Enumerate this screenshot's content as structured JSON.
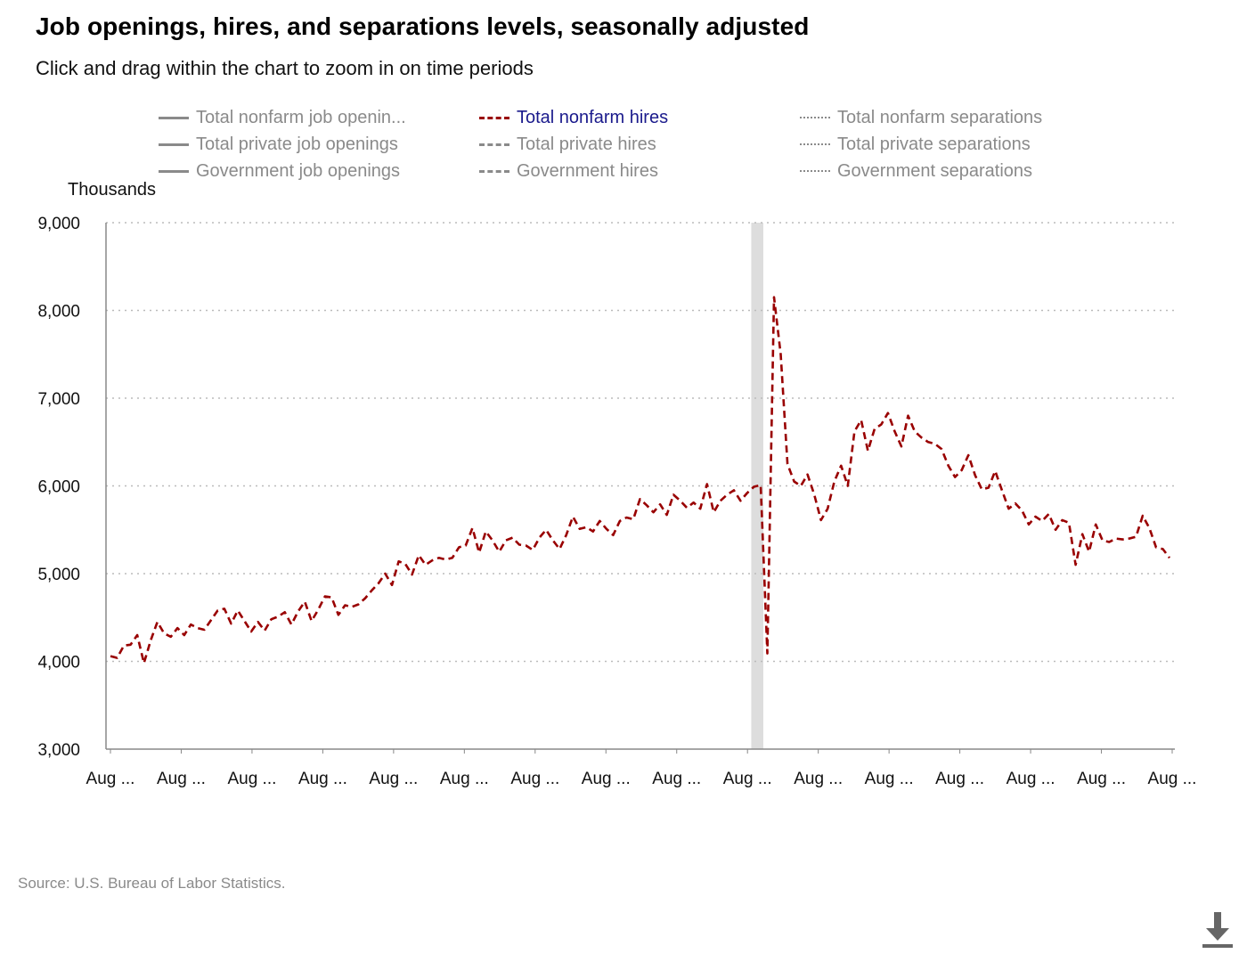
{
  "header": {
    "title": "Job openings, hires, and separations levels, seasonally adjusted",
    "subtitle": "Click and drag within the chart to zoom in on time periods"
  },
  "legend": [
    {
      "label": "Total nonfarm job openin...",
      "style": "solid",
      "active": false
    },
    {
      "label": "Total private job openings",
      "style": "solid",
      "active": false
    },
    {
      "label": "Government job openings",
      "style": "solid",
      "active": false
    },
    {
      "label": "Total nonfarm hires",
      "style": "dash",
      "active": true
    },
    {
      "label": "Total private hires",
      "style": "dash",
      "active": false
    },
    {
      "label": "Government hires",
      "style": "dash",
      "active": false
    },
    {
      "label": "Total nonfarm separations",
      "style": "dot",
      "active": false
    },
    {
      "label": "Total private separations",
      "style": "dot",
      "active": false
    },
    {
      "label": "Government separations",
      "style": "dot",
      "active": false
    }
  ],
  "source": "Source: U.S. Bureau of Labor Statistics.",
  "download": {
    "icon": "download-icon"
  },
  "colors": {
    "series": "#990000",
    "legend_inactive": "#8a8a8a",
    "legend_active": "#1a1a8c",
    "grid": "#bbbbbb",
    "axis": "#888888",
    "recession": "#dddddd"
  },
  "chart_data": {
    "type": "line",
    "title": "Job openings, hires, and separations levels, seasonally adjusted",
    "ylabel": "Thousands",
    "ylim": [
      3000,
      9000
    ],
    "yticks": [
      3000,
      4000,
      5000,
      6000,
      7000,
      8000,
      9000
    ],
    "ytick_labels": [
      "3,000",
      "4,000",
      "5,000",
      "6,000",
      "7,000",
      "8,000",
      "9,000"
    ],
    "xtick_labels": [
      "Aug ...",
      "Aug ...",
      "Aug ...",
      "Aug ...",
      "Aug ...",
      "Aug ...",
      "Aug ...",
      "Aug ...",
      "Aug ...",
      "Aug ...",
      "Aug ...",
      "Aug ...",
      "Aug ...",
      "Aug ...",
      "Aug ...",
      "Aug ..."
    ],
    "grid": true,
    "recession_band": {
      "start_month_index": 96,
      "end_month_index": 97
    },
    "series": [
      {
        "name": "Total nonfarm hires",
        "style": "dashed",
        "values": [
          4060,
          4040,
          4180,
          4190,
          4300,
          3980,
          4240,
          4450,
          4320,
          4280,
          4380,
          4300,
          4420,
          4380,
          4360,
          4470,
          4580,
          4600,
          4430,
          4580,
          4460,
          4340,
          4450,
          4350,
          4480,
          4510,
          4560,
          4420,
          4570,
          4680,
          4460,
          4590,
          4740,
          4730,
          4530,
          4640,
          4620,
          4650,
          4720,
          4810,
          4890,
          5000,
          4870,
          5140,
          5110,
          4990,
          5210,
          5100,
          5150,
          5180,
          5160,
          5180,
          5300,
          5320,
          5520,
          5240,
          5480,
          5380,
          5250,
          5380,
          5410,
          5330,
          5320,
          5270,
          5410,
          5500,
          5380,
          5280,
          5440,
          5650,
          5510,
          5530,
          5480,
          5600,
          5510,
          5440,
          5600,
          5640,
          5620,
          5850,
          5780,
          5700,
          5790,
          5670,
          5900,
          5830,
          5750,
          5810,
          5740,
          6020,
          5700,
          5830,
          5900,
          5950,
          5830,
          5920,
          5990,
          6010,
          4090,
          8150,
          7500,
          6250,
          6050,
          6000,
          6130,
          5900,
          5610,
          5740,
          6050,
          6230,
          6000,
          6620,
          6750,
          6400,
          6650,
          6700,
          6830,
          6620,
          6450,
          6800,
          6620,
          6550,
          6500,
          6480,
          6420,
          6230,
          6100,
          6180,
          6350,
          6120,
          5960,
          5980,
          6170,
          5950,
          5740,
          5800,
          5720,
          5560,
          5650,
          5600,
          5680,
          5500,
          5610,
          5580,
          5100,
          5450,
          5250,
          5560,
          5380,
          5360,
          5400,
          5390,
          5400,
          5420,
          5660,
          5520,
          5300,
          5280,
          5180
        ]
      }
    ]
  }
}
